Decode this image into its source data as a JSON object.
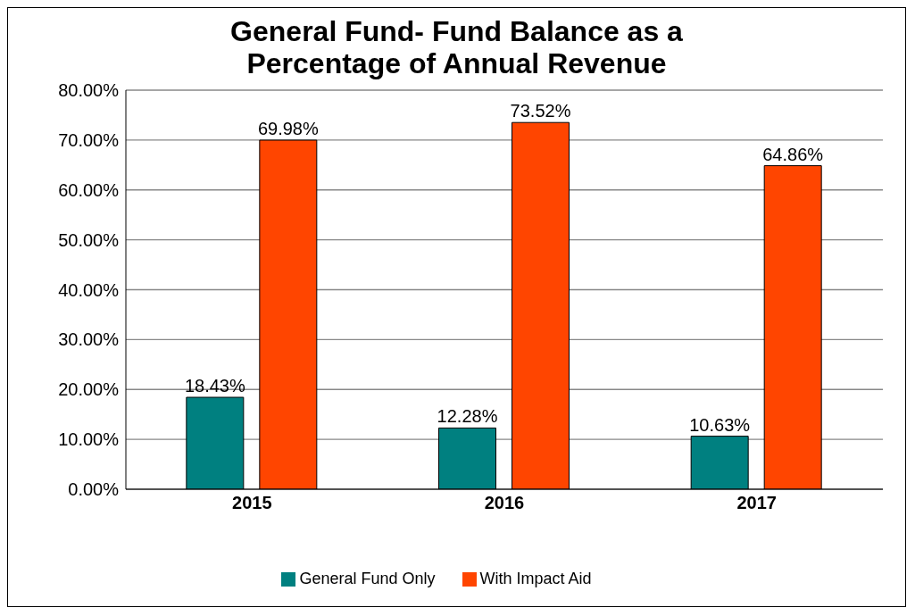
{
  "chart_data": {
    "type": "bar",
    "title": "General Fund- Fund Balance as a Percentage of Annual Revenue",
    "categories": [
      "2015",
      "2016",
      "2017"
    ],
    "series": [
      {
        "name": "General Fund Only",
        "color": "#008080",
        "values": [
          18.43,
          12.28,
          10.63
        ],
        "value_labels": [
          "18.43%",
          "12.28%",
          "10.63%"
        ]
      },
      {
        "name": "With Impact Aid",
        "color": "#ff4500",
        "values": [
          69.98,
          73.52,
          64.86
        ],
        "value_labels": [
          "69.98%",
          "73.52%",
          "64.86%"
        ]
      }
    ],
    "ylim": [
      0,
      80
    ],
    "yticks": [
      {
        "value": 0,
        "label": "0.00%"
      },
      {
        "value": 10,
        "label": "10.00%"
      },
      {
        "value": 20,
        "label": "20.00%"
      },
      {
        "value": 30,
        "label": "30.00%"
      },
      {
        "value": 40,
        "label": "40.00%"
      },
      {
        "value": 50,
        "label": "50.00%"
      },
      {
        "value": 60,
        "label": "60.00%"
      },
      {
        "value": 70,
        "label": "70.00%"
      },
      {
        "value": 80,
        "label": "80.00%"
      }
    ],
    "grid": "y",
    "legend": "bottom"
  }
}
